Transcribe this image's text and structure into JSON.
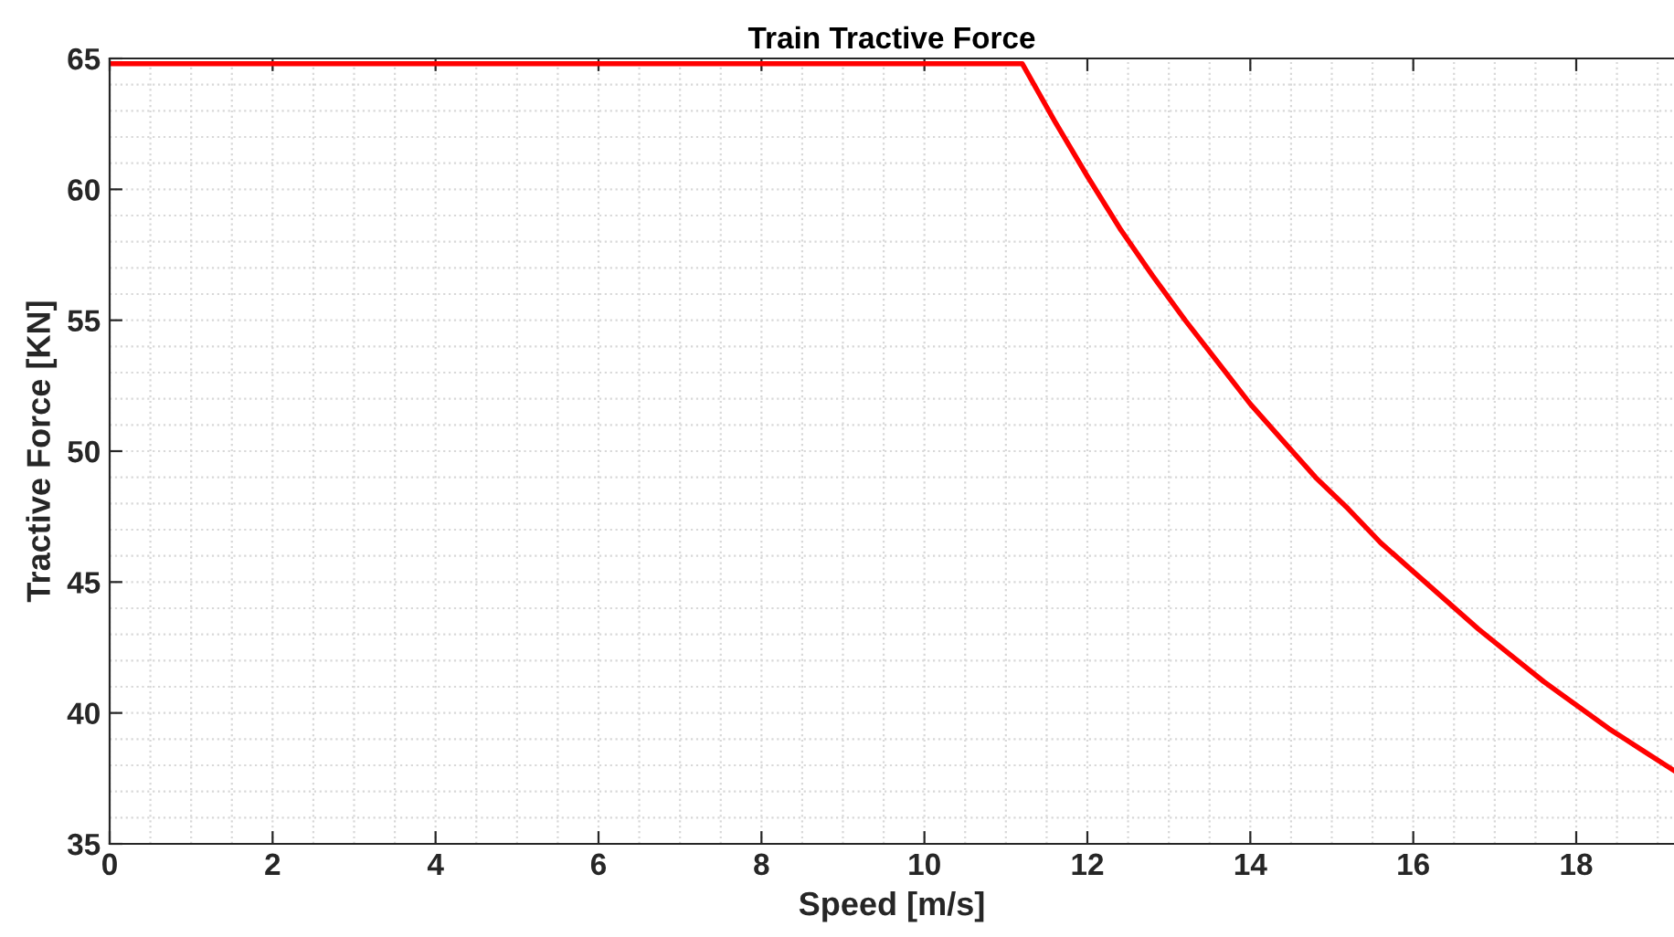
{
  "chart_data": {
    "type": "line",
    "title": "Train Tractive Force",
    "xlabel": "Speed [m/s]",
    "ylabel": "Tractive Force [KN]",
    "x": [
      0,
      11.2,
      11.6,
      12,
      12.4,
      12.8,
      13.2,
      13.6,
      14,
      14.4,
      14.8,
      15.2,
      15.6,
      16,
      16.4,
      16.8,
      17.2,
      17.6,
      18,
      18.4,
      18.8,
      19.2
    ],
    "series": [
      {
        "color": "#ff0000",
        "values": [
          64.8,
          64.8,
          62.6,
          60.5,
          58.5,
          56.7,
          55.0,
          53.4,
          51.8,
          50.4,
          49.0,
          47.8,
          46.5,
          45.4,
          44.3,
          43.2,
          42.2,
          41.2,
          40.3,
          39.4,
          38.6,
          37.8
        ]
      }
    ],
    "xlim": [
      0,
      19.2
    ],
    "ylim": [
      35,
      65
    ],
    "xticks": [
      0,
      2,
      4,
      6,
      8,
      10,
      12,
      14,
      16,
      18
    ],
    "yticks": [
      35,
      40,
      45,
      50,
      55,
      60,
      65
    ],
    "grid": true,
    "legend": false,
    "marker": "none",
    "line_style": "solid"
  }
}
